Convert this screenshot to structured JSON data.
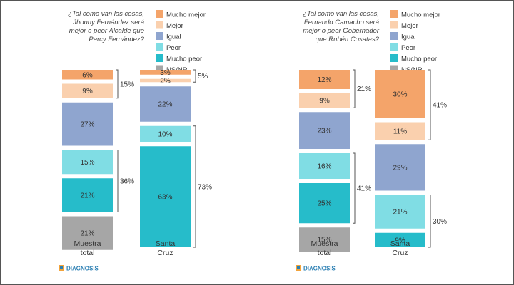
{
  "colors": {
    "Mucho mejor": "#f4a46a",
    "Mejor": "#fad0ae",
    "Igual": "#8fa5cf",
    "Peor": "#80dde4",
    "Mucho peor": "#26bcca",
    "NS/NR": "#a6a6a6"
  },
  "legend": [
    "Mucho mejor",
    "Mejor",
    "Igual",
    "Peor",
    "Mucho peor",
    "NS/NR"
  ],
  "logo_text": "DIAGNOSIS",
  "chart_data": [
    {
      "type": "bar",
      "stacked": true,
      "question_lines": [
        "¿Tal como van las cosas,",
        "Jhonny Fernández será",
        "mejor o peor Alcalde que",
        "Percy Fernández?"
      ],
      "categories": [
        [
          "Muestra",
          "total"
        ],
        [
          "Santa",
          "Cruz"
        ]
      ],
      "series": [
        {
          "name": "Mucho mejor",
          "values": [
            6,
            3
          ]
        },
        {
          "name": "Mejor",
          "values": [
            9,
            2
          ]
        },
        {
          "name": "Igual",
          "values": [
            27,
            22
          ]
        },
        {
          "name": "Peor",
          "values": [
            15,
            10
          ]
        },
        {
          "name": "Mucho peor",
          "values": [
            21,
            63
          ]
        },
        {
          "name": "NS/NR",
          "values": [
            21,
            null
          ]
        }
      ],
      "brackets": [
        {
          "bar": 0,
          "from": "Mucho mejor",
          "to": "Mejor",
          "label": "15%"
        },
        {
          "bar": 0,
          "from": "Peor",
          "to": "Mucho peor",
          "label": "36%"
        },
        {
          "bar": 1,
          "from": "Mucho mejor",
          "to": "Mejor",
          "label": "5%"
        },
        {
          "bar": 1,
          "from": "Peor",
          "to": "Mucho peor",
          "label": "73%"
        }
      ]
    },
    {
      "type": "bar",
      "stacked": true,
      "question_lines": [
        "¿Tal como van las cosas,",
        "Fernando Camacho será",
        "mejor o peor Gobernador",
        "que Rubén Cosatas?"
      ],
      "categories": [
        [
          "Muestra",
          "total"
        ],
        [
          "Santa",
          "Cruz"
        ]
      ],
      "series": [
        {
          "name": "Mucho mejor",
          "values": [
            12,
            30
          ]
        },
        {
          "name": "Mejor",
          "values": [
            9,
            11
          ]
        },
        {
          "name": "Igual",
          "values": [
            23,
            29
          ]
        },
        {
          "name": "Peor",
          "values": [
            16,
            21
          ]
        },
        {
          "name": "Mucho peor",
          "values": [
            25,
            9
          ]
        },
        {
          "name": "NS/NR",
          "values": [
            15,
            null
          ]
        }
      ],
      "brackets": [
        {
          "bar": 0,
          "from": "Mucho mejor",
          "to": "Mejor",
          "label": "21%"
        },
        {
          "bar": 0,
          "from": "Peor",
          "to": "Mucho peor",
          "label": "41%"
        },
        {
          "bar": 1,
          "from": "Mucho mejor",
          "to": "Mejor",
          "label": "41%"
        },
        {
          "bar": 1,
          "from": "Peor",
          "to": "Mucho peor",
          "label": "30%"
        }
      ]
    }
  ]
}
